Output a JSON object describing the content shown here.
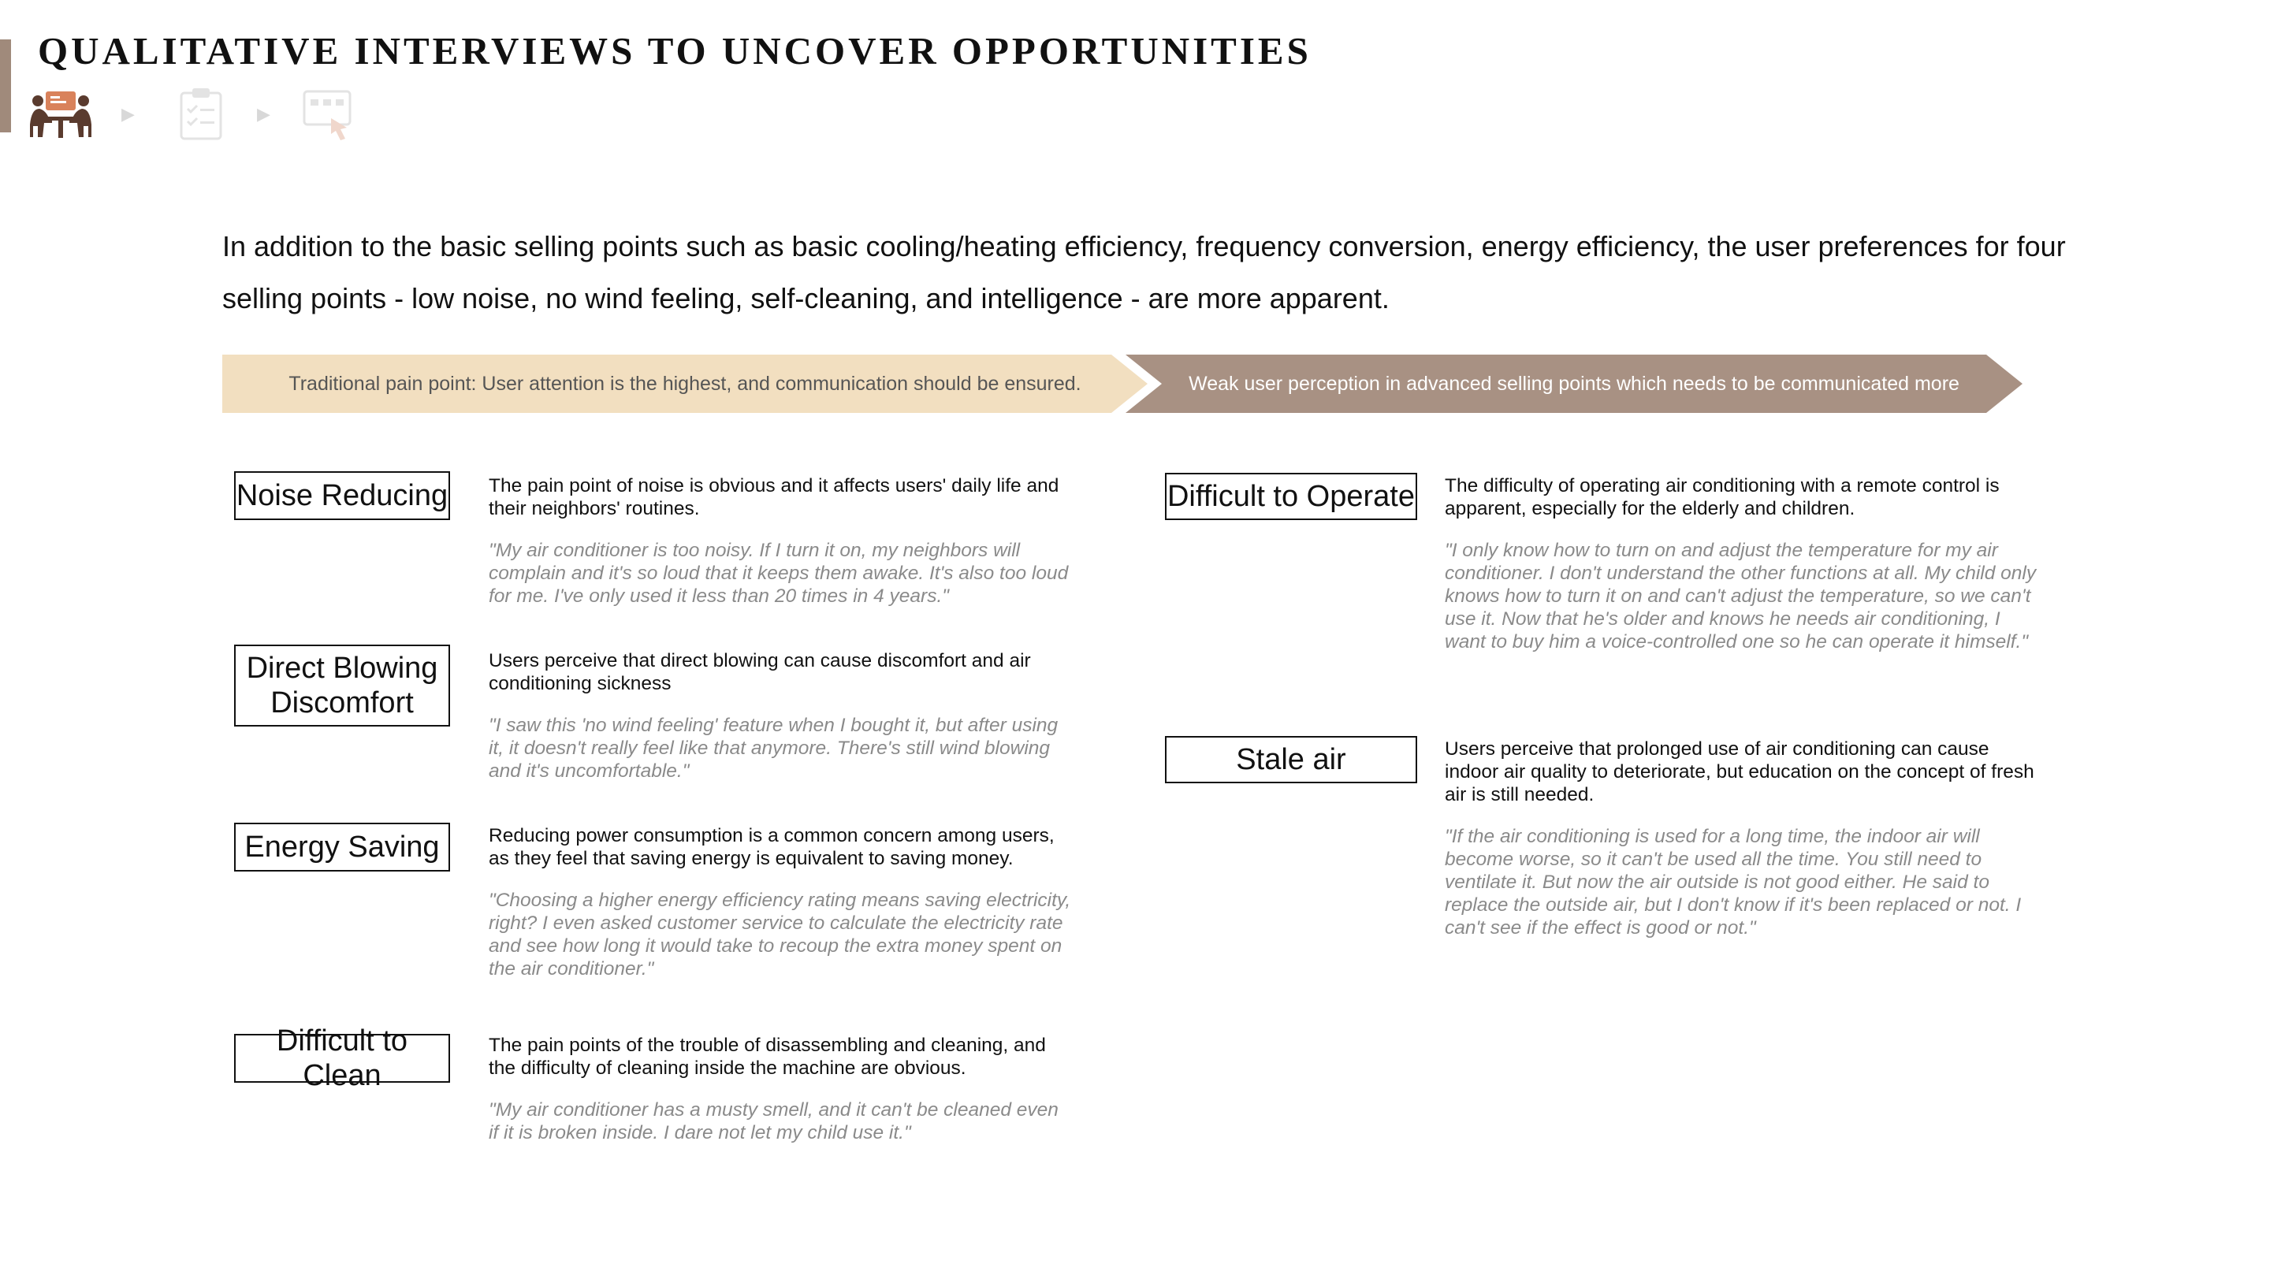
{
  "title": "QUALITATIVE INTERVIEWS TO UNCOVER OPPORTUNITIES",
  "icons": [
    "interview-icon",
    "arrow-right-icon",
    "clipboard-checklist-icon",
    "arrow-right-icon",
    "touch-screen-icon"
  ],
  "intro": "In addition to the basic selling points such as basic cooling/heating efficiency, frequency conversion, energy efficiency, the user preferences for four selling points - low noise, no wind feeling, self-cleaning, and intelligence - are more apparent.",
  "banners": {
    "traditional": "Traditional pain point: User attention is the highest, and communication should be ensured.",
    "advanced": "Weak user perception in advanced selling points which needs to be communicated more"
  },
  "colors": {
    "accent": "#a08a7b",
    "banner_light": "#f2dfc0",
    "banner_dark": "#a89183",
    "quote": "#8a8a8a"
  },
  "left_items": [
    {
      "label": "Noise Reducing",
      "description": "The pain point of noise is obvious and it affects users' daily life and their neighbors' routines.",
      "quote": "\"My air conditioner is too noisy. If I turn it on, my neighbors will complain and it's so loud that it keeps them awake. It's also too loud for me. I've only used it less than 20 times in 4 years.\""
    },
    {
      "label": "Direct Blowing Discomfort",
      "description": "Users perceive that direct blowing can cause discomfort and air conditioning sickness",
      "quote": "\"I saw this 'no wind feeling' feature when I bought it, but after using it, it doesn't really feel like that anymore. There's still wind blowing and it's uncomfortable.\""
    },
    {
      "label": "Energy Saving",
      "description": "Reducing power consumption is a common concern among users, as they feel that saving energy is equivalent to saving money.",
      "quote": "\"Choosing a higher energy efficiency rating means saving electricity, right? I even asked customer service to calculate the electricity rate and see how long it would take to recoup the extra money spent on the air conditioner.\""
    },
    {
      "label": "Difficult to Clean",
      "description": "The pain points of the trouble of disassembling and cleaning, and the difficulty of cleaning inside the machine are obvious.",
      "quote": "\"My air conditioner has a musty smell, and it can't be cleaned even if it is broken inside. I dare not let my child use it.\""
    }
  ],
  "right_items": [
    {
      "label": "Difficult to Operate",
      "description": "The difficulty of operating air conditioning with a remote control is apparent, especially for the elderly and children.",
      "quote": "\"I only know how to turn on and adjust the temperature for my air conditioner. I don't understand the other functions at all. My child only knows how to turn it on and can't adjust the temperature, so we can't use it. Now that he's older and knows he needs air conditioning, I want to buy him a voice-controlled one so he can operate it himself.\""
    },
    {
      "label": "Stale air",
      "description": "Users perceive that prolonged use of air conditioning can cause indoor air quality to deteriorate, but education on the concept of fresh air is still needed.",
      "quote": "\"If the air conditioning is used for a long time, the indoor air will become worse, so it can't be used all the time. You still need to ventilate it. But now the air outside is not good either. He said to replace the outside air, but I don't know if it's been replaced or not. I can't see if the effect is good or not.\""
    }
  ]
}
